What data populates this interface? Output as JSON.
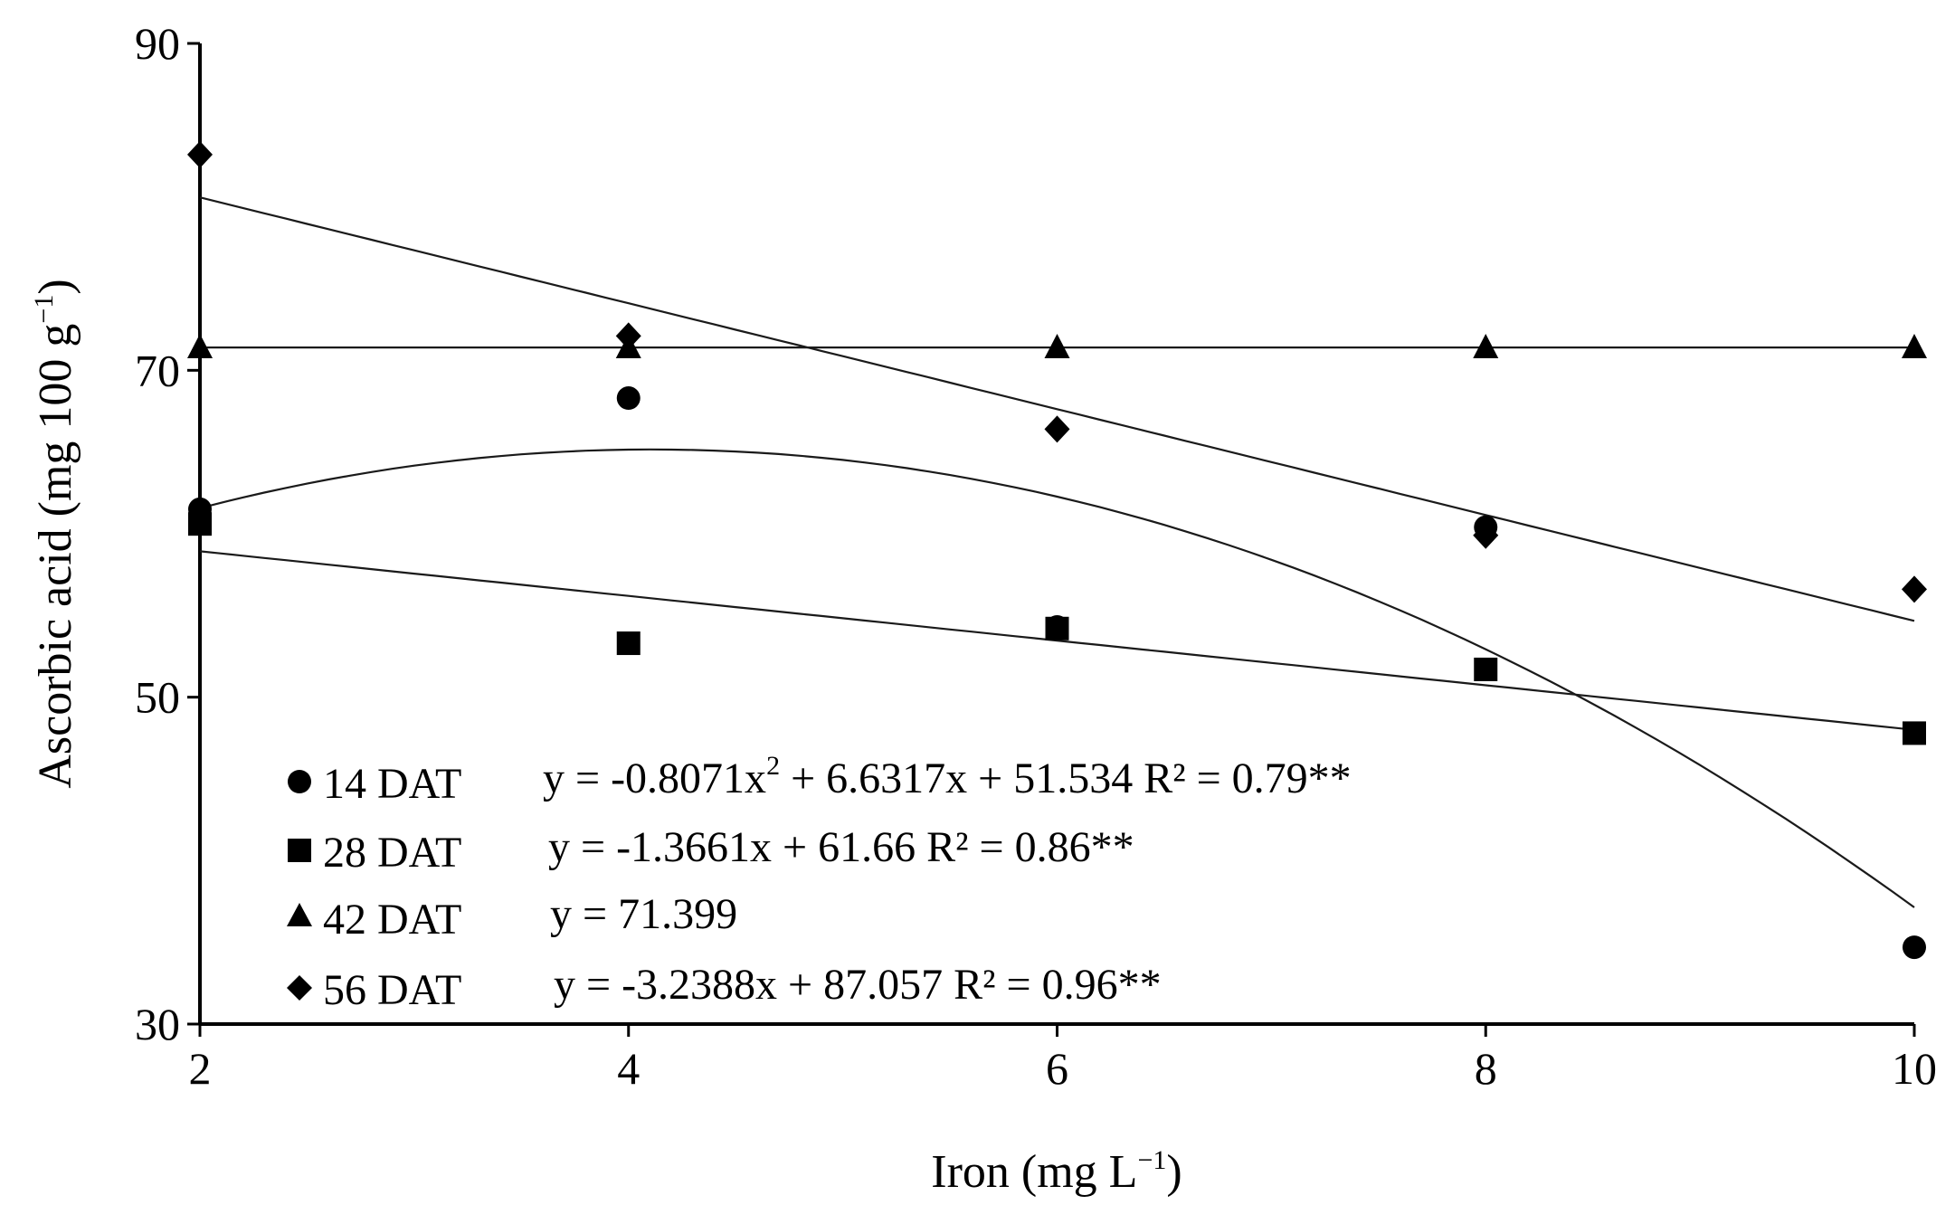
{
  "chart_data": {
    "type": "scatter",
    "xlabel": "Iron (mg L",
    "xlabel_sup": "−1",
    "xlabel_end": ")",
    "ylabel": "Ascorbic acid (mg 100 g",
    "ylabel_sup": "−1",
    "ylabel_end": ")",
    "xlim": [
      2,
      10
    ],
    "ylim": [
      30,
      90
    ],
    "x_ticks": [
      "2",
      "4",
      "6",
      "8",
      "10"
    ],
    "y_ticks": [
      "30",
      "50",
      "70",
      "90"
    ],
    "x": [
      2,
      4,
      6,
      8,
      10
    ],
    "series": [
      {
        "name": "14 DAT",
        "marker": "circle",
        "values": [
          61.5,
          68.3,
          54.3,
          60.4,
          34.7
        ],
        "equation": "y = -0.8071x",
        "eq_sup": "2",
        "eq_rest": " + 6.6317x + 51.534 R² = 0.79**",
        "fit": {
          "kind": "quadratic",
          "a": -0.8071,
          "b": 6.6317,
          "c": 51.534
        }
      },
      {
        "name": "28 DAT",
        "marker": "square",
        "values": [
          60.6,
          53.3,
          54.2,
          51.7,
          47.8
        ],
        "equation": "y = -1.3661x + 61.66 R² = 0.86**",
        "eq_sup": "",
        "eq_rest": "",
        "fit": {
          "kind": "linear",
          "m": -1.3661,
          "c": 61.66
        }
      },
      {
        "name": "42 DAT",
        "marker": "triangle",
        "values": [
          71.4,
          71.4,
          71.4,
          71.4,
          71.4
        ],
        "equation": "y = 71.399",
        "eq_sup": "",
        "eq_rest": "",
        "fit": {
          "kind": "linear",
          "m": 0,
          "c": 71.399
        }
      },
      {
        "name": "56 DAT",
        "marker": "diamond",
        "values": [
          83.2,
          72.1,
          66.4,
          59.9,
          56.6
        ],
        "equation": "y = -3.2388x + 87.057 R² = 0.96**",
        "eq_sup": "",
        "eq_rest": "",
        "fit": {
          "kind": "linear",
          "m": -3.2388,
          "c": 87.057
        }
      }
    ]
  }
}
